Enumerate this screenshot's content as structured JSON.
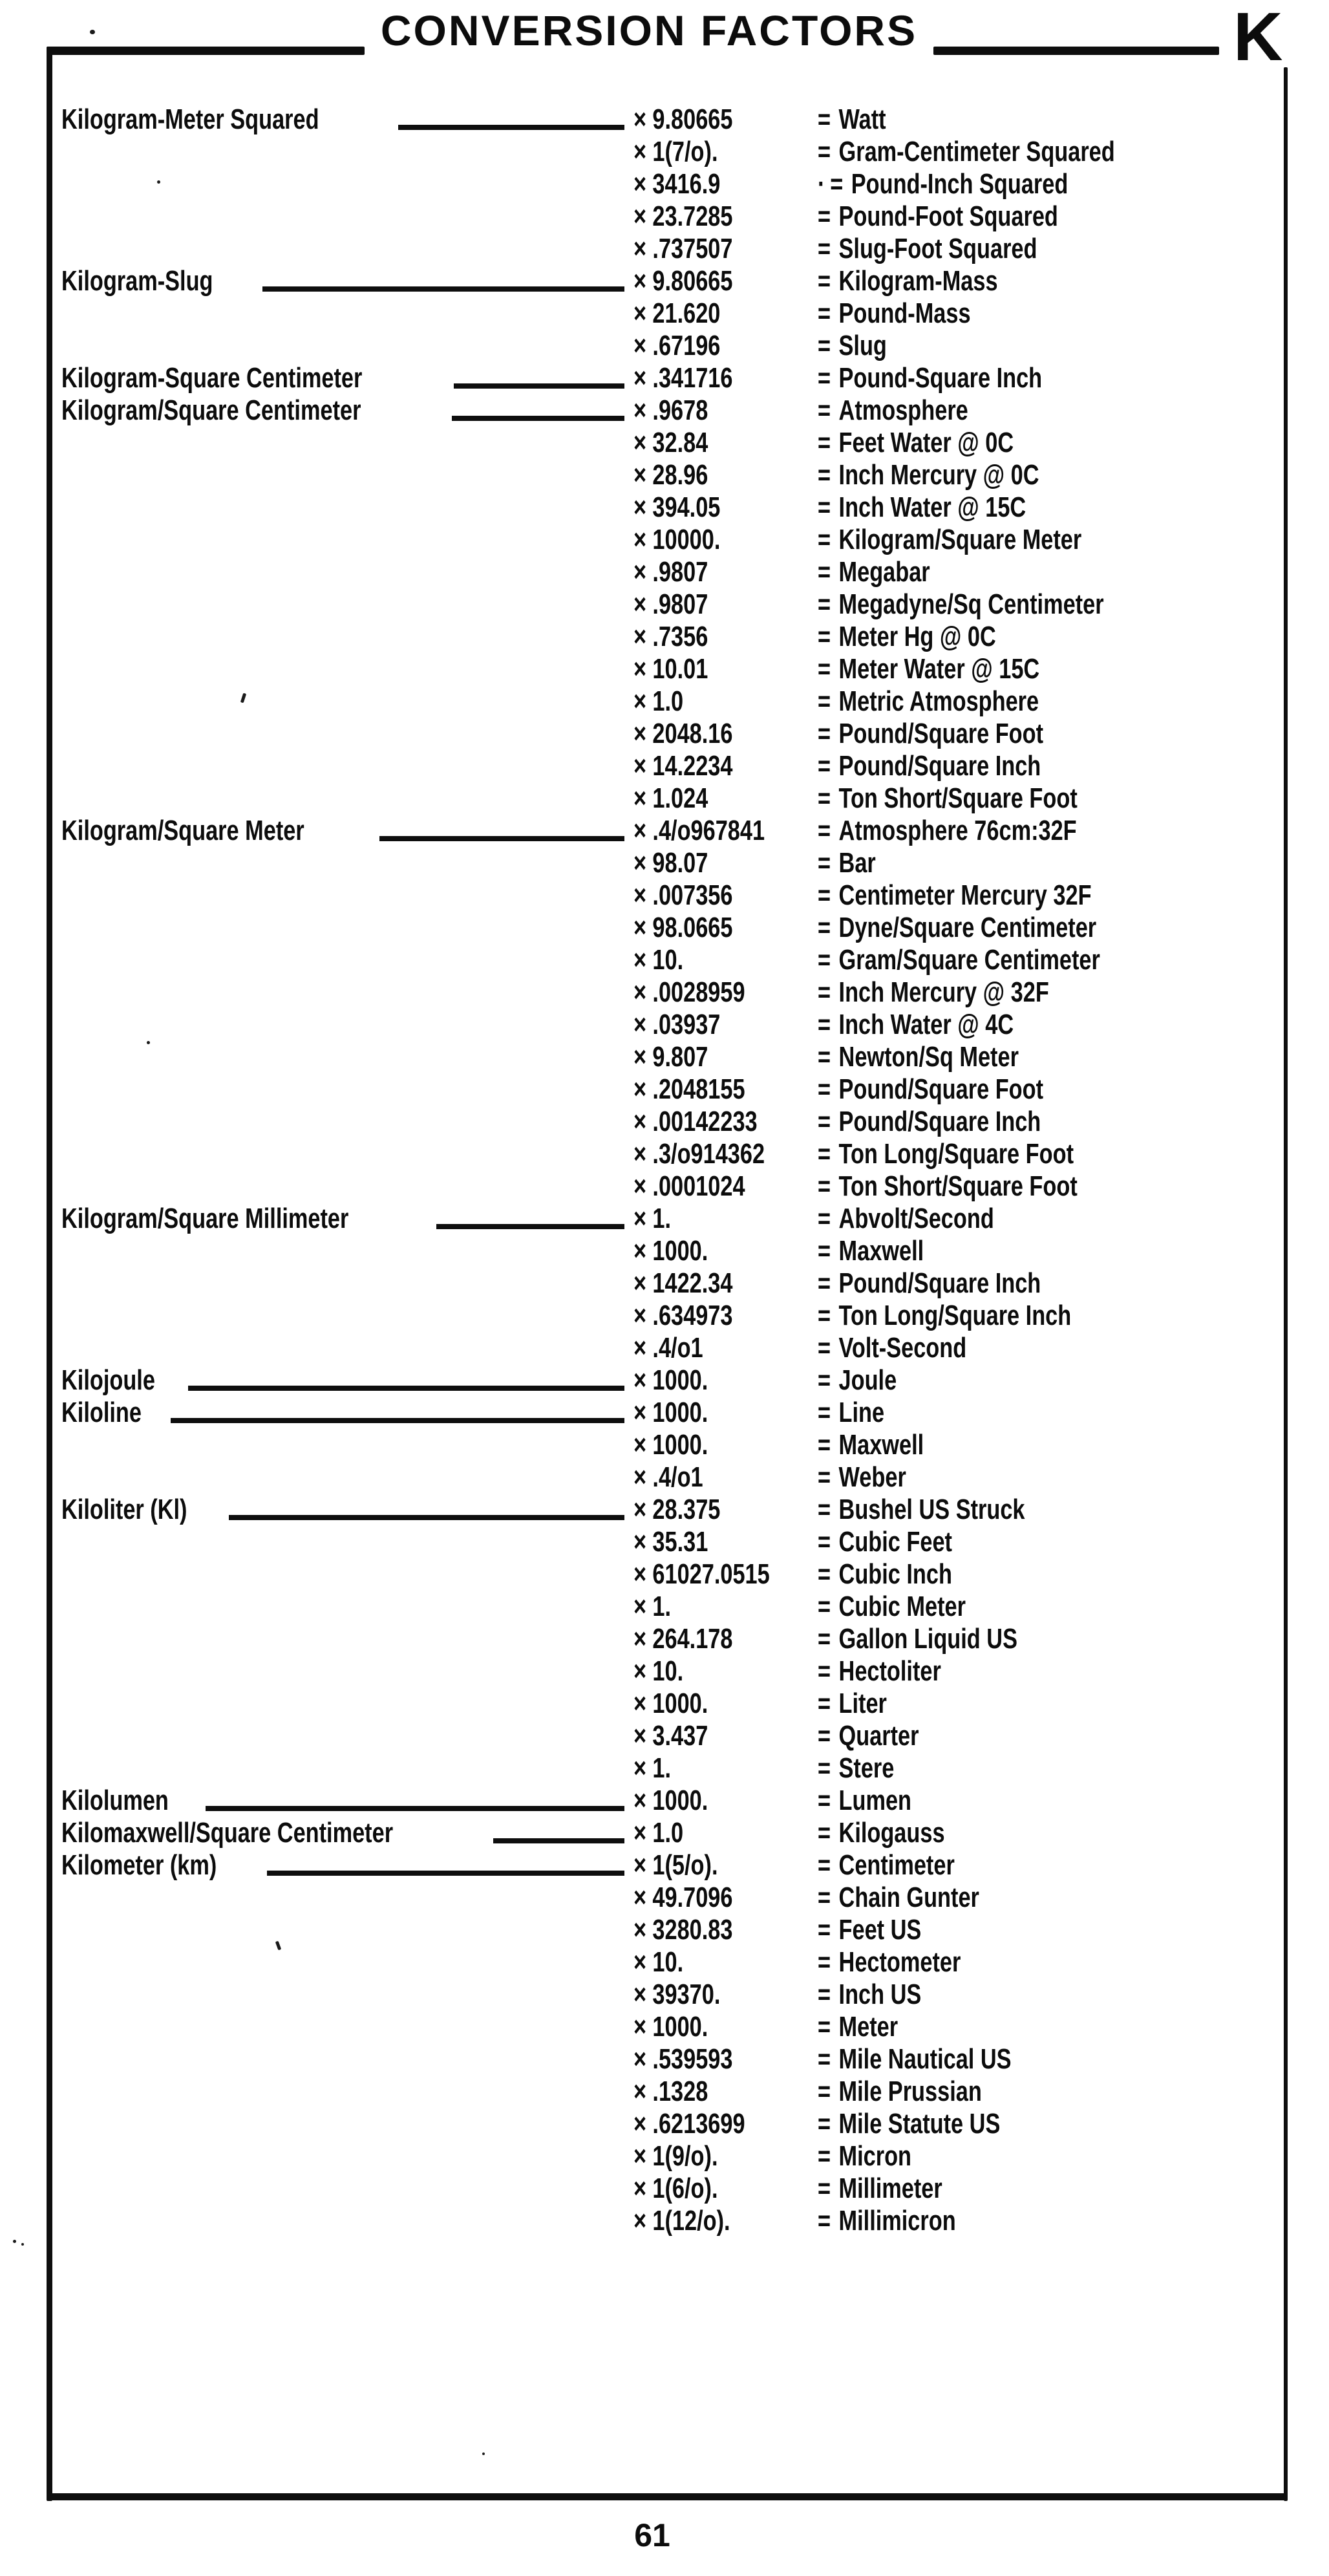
{
  "page": {
    "title": "CONVERSION FACTORS",
    "section_letter": "K",
    "page_number": "61"
  },
  "table": {
    "multiply_symbol": "×",
    "equals_symbol": "=",
    "rows": [
      {
        "name": "Kilogram-Meter Squared",
        "value": "9.80665",
        "result": "Watt"
      },
      {
        "value": "1(7/o).",
        "result": "Gram-Centimeter Squared"
      },
      {
        "value": "3416.9",
        "pre_eq": "·",
        "result": "Pound-Inch Squared"
      },
      {
        "value": "23.7285",
        "result": "Pound-Foot Squared"
      },
      {
        "value": ".737507",
        "result": "Slug-Foot Squared"
      },
      {
        "name": "Kilogram-Slug",
        "value": "9.80665",
        "result": "Kilogram-Mass"
      },
      {
        "value": "21.620",
        "result": "Pound-Mass"
      },
      {
        "value": ".67196",
        "result": "Slug"
      },
      {
        "name": "Kilogram-Square Centimeter",
        "value": ".341716",
        "result": "Pound-Square Inch"
      },
      {
        "name": "Kilogram/Square Centimeter",
        "value": ".9678",
        "result": "Atmosphere"
      },
      {
        "value": "32.84",
        "result": "Feet Water @ 0C"
      },
      {
        "value": "28.96",
        "result": "Inch Mercury @ 0C"
      },
      {
        "value": "394.05",
        "result": "Inch Water @ 15C"
      },
      {
        "value": "10000.",
        "result": "Kilogram/Square Meter"
      },
      {
        "value": ".9807",
        "result": "Megabar"
      },
      {
        "value": ".9807",
        "result": "Megadyne/Sq Centimeter"
      },
      {
        "value": ".7356",
        "result": "Meter Hg @ 0C"
      },
      {
        "value": "10.01",
        "result": "Meter Water @ 15C"
      },
      {
        "value": "1.0",
        "result": "Metric Atmosphere"
      },
      {
        "value": "2048.16",
        "result": "Pound/Square Foot"
      },
      {
        "value": "14.2234",
        "result": "Pound/Square Inch"
      },
      {
        "value": "1.024",
        "result": "Ton Short/Square Foot"
      },
      {
        "name": "Kilogram/Square Meter",
        "value": ".4/o967841",
        "result": "Atmosphere 76cm:32F"
      },
      {
        "value": "98.07",
        "result": "Bar"
      },
      {
        "value": ".007356",
        "result": "Centimeter Mercury 32F"
      },
      {
        "value": "98.0665",
        "result": "Dyne/Square Centimeter"
      },
      {
        "value": "10.",
        "result": "Gram/Square Centimeter"
      },
      {
        "value": ".0028959",
        "result": "Inch Mercury @ 32F"
      },
      {
        "value": ".03937",
        "result": "Inch Water @ 4C"
      },
      {
        "value": "9.807",
        "result": "Newton/Sq Meter"
      },
      {
        "value": ".2048155",
        "result": "Pound/Square Foot"
      },
      {
        "value": ".00142233",
        "result": "Pound/Square Inch"
      },
      {
        "value": ".3/o914362",
        "result": "Ton Long/Square Foot"
      },
      {
        "value": ".0001024",
        "result": "Ton Short/Square Foot"
      },
      {
        "name": "Kilogram/Square Millimeter",
        "value": "1.",
        "result": "Abvolt/Second"
      },
      {
        "value": "1000.",
        "result": "Maxwell"
      },
      {
        "value": "1422.34",
        "result": "Pound/Square Inch"
      },
      {
        "value": ".634973",
        "result": "Ton Long/Square Inch"
      },
      {
        "value": ".4/o1",
        "result": "Volt-Second"
      },
      {
        "name": "Kilojoule",
        "value": "1000.",
        "result": "Joule"
      },
      {
        "name": "Kiloline",
        "value": "1000.",
        "result": "Line"
      },
      {
        "value": "1000.",
        "result": "Maxwell"
      },
      {
        "value": ".4/o1",
        "result": "Weber"
      },
      {
        "name": "Kiloliter (Kl)",
        "value": "28.375",
        "result": "Bushel US Struck"
      },
      {
        "value": "35.31",
        "result": "Cubic Feet"
      },
      {
        "value": "61027.0515",
        "result": "Cubic Inch"
      },
      {
        "value": "1.",
        "result": "Cubic Meter"
      },
      {
        "value": "264.178",
        "result": "Gallon Liquid US"
      },
      {
        "value": "10.",
        "result": "Hectoliter"
      },
      {
        "value": "1000.",
        "result": "Liter"
      },
      {
        "value": "3.437",
        "result": "Quarter"
      },
      {
        "value": "1.",
        "result": "Stere"
      },
      {
        "name": "Kilolumen",
        "value": "1000.",
        "result": "Lumen"
      },
      {
        "name": "Kilomaxwell/Square Centimeter",
        "value": "1.0",
        "result": "Kilogauss"
      },
      {
        "name": "Kilometer (km)",
        "value": "1(5/o).",
        "result": "Centimeter"
      },
      {
        "value": "49.7096",
        "result": "Chain Gunter"
      },
      {
        "value": "3280.83",
        "result": "Feet US"
      },
      {
        "value": "10.",
        "result": "Hectometer"
      },
      {
        "value": "39370.",
        "result": "Inch US"
      },
      {
        "value": "1000.",
        "result": "Meter"
      },
      {
        "value": ".539593",
        "result": "Mile Nautical US"
      },
      {
        "value": ".1328",
        "result": "Mile Prussian"
      },
      {
        "value": ".6213699",
        "result": "Mile Statute US"
      },
      {
        "value": "1(9/o).",
        "result": "Micron"
      },
      {
        "value": "1(6/o).",
        "result": "Millimeter"
      },
      {
        "value": "1(12/o).",
        "result": "Millimicron"
      }
    ]
  }
}
